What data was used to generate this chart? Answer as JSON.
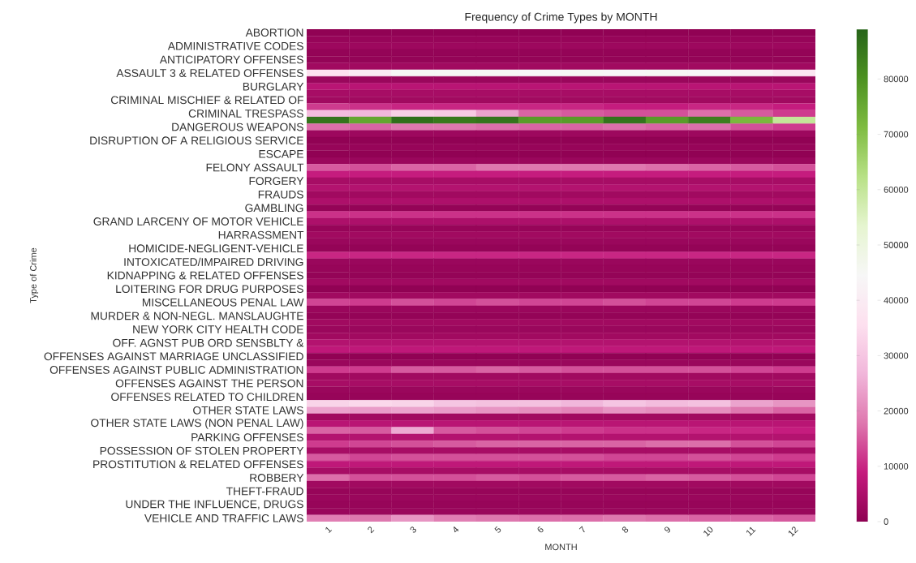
{
  "chart_data": {
    "type": "heatmap",
    "title": "Frequency of Crime Types by MONTH",
    "xlabel": "MONTH",
    "ylabel": "Type of Crime",
    "categories": [
      "1",
      "2",
      "3",
      "4",
      "5",
      "6",
      "7",
      "8",
      "9",
      "10",
      "11",
      "12"
    ],
    "y_categories": [
      "ABORTION",
      null,
      "ADMINISTRATIVE CODES",
      null,
      "ANTICIPATORY OFFENSES",
      null,
      "ASSAULT 3 & RELATED OFFENSES",
      null,
      "BURGLARY",
      null,
      "CRIMINAL MISCHIEF & RELATED OF",
      null,
      "CRIMINAL TRESPASS",
      null,
      "DANGEROUS WEAPONS",
      null,
      "DISRUPTION OF A RELIGIOUS SERVICE",
      null,
      "ESCAPE",
      null,
      "FELONY ASSAULT",
      null,
      "FORGERY",
      null,
      "FRAUDS",
      null,
      "GAMBLING",
      null,
      "GRAND LARCENY OF MOTOR VEHICLE",
      null,
      "HARRASSMENT",
      null,
      "HOMICIDE-NEGLIGENT-VEHICLE",
      null,
      "INTOXICATED/IMPAIRED DRIVING",
      null,
      "KIDNAPPING & RELATED OFFENSES",
      null,
      "LOITERING FOR DRUG PURPOSES",
      null,
      "MISCELLANEOUS PENAL LAW",
      null,
      "MURDER & NON-NEGL. MANSLAUGHTE",
      null,
      "NEW YORK CITY HEALTH CODE",
      null,
      "OFF. AGNST PUB ORD SENSBLTY &",
      null,
      "OFFENSES AGAINST MARRIAGE UNCLASSIFIED",
      null,
      "OFFENSES AGAINST PUBLIC ADMINISTRATION",
      null,
      "OFFENSES AGAINST THE PERSON",
      null,
      "OFFENSES RELATED TO CHILDREN",
      null,
      "OTHER STATE LAWS",
      null,
      "OTHER STATE LAWS (NON PENAL LAW)",
      null,
      "PARKING OFFENSES",
      null,
      "POSSESSION OF STOLEN PROPERTY",
      null,
      "PROSTITUTION & RELATED OFFENSES",
      null,
      "ROBBERY",
      null,
      "THEFT-FRAUD",
      null,
      "UNDER THE INFLUENCE, DRUGS",
      null,
      "VEHICLE AND TRAFFIC LAWS"
    ],
    "cells": [
      [
        500,
        500,
        500,
        500,
        500,
        500,
        500,
        500,
        500,
        500,
        500,
        500
      ],
      [
        1500,
        1500,
        1500,
        1500,
        1500,
        1500,
        1500,
        1500,
        1500,
        1500,
        1500,
        1500
      ],
      [
        2500,
        2500,
        2500,
        2500,
        2500,
        2500,
        2500,
        2500,
        2500,
        2500,
        2500,
        2500
      ],
      [
        1000,
        1000,
        1000,
        1000,
        1000,
        1000,
        1000,
        1000,
        1000,
        1000,
        1000,
        1000
      ],
      [
        1000,
        1000,
        1000,
        1000,
        1000,
        1000,
        1000,
        1000,
        1000,
        1000,
        1000,
        1000
      ],
      [
        3000,
        3000,
        3000,
        3000,
        3000,
        3000,
        3000,
        3000,
        3000,
        3000,
        3000,
        3000
      ],
      [
        36000,
        40000,
        45000,
        45000,
        45000,
        44000,
        45000,
        44000,
        45000,
        44000,
        42000,
        38000
      ],
      [
        2000,
        2000,
        2000,
        2000,
        2000,
        2000,
        2000,
        2000,
        2000,
        2000,
        2000,
        2000
      ],
      [
        7000,
        7000,
        7000,
        7000,
        7000,
        7000,
        7000,
        7000,
        7000,
        7000,
        7000,
        7000
      ],
      [
        4000,
        4000,
        4000,
        4000,
        4000,
        4000,
        4000,
        4000,
        4000,
        4000,
        4000,
        4000
      ],
      [
        3000,
        3000,
        3000,
        3000,
        3000,
        3000,
        3000,
        3000,
        3000,
        3000,
        3000,
        3000
      ],
      [
        12000,
        11000,
        10000,
        10000,
        10000,
        10000,
        10000,
        9000,
        9000,
        10000,
        10000,
        9000
      ],
      [
        28000,
        27000,
        32000,
        31000,
        24000,
        16000,
        15000,
        14000,
        14000,
        17000,
        15000,
        12000
      ],
      [
        86000,
        76000,
        87000,
        85000,
        86000,
        78000,
        78000,
        86000,
        78000,
        84000,
        72000,
        60000
      ],
      [
        17000,
        16000,
        18000,
        18000,
        17000,
        16000,
        16000,
        17000,
        16000,
        17000,
        14000,
        12000
      ],
      [
        2500,
        2500,
        2500,
        2500,
        2500,
        2500,
        2500,
        2500,
        2500,
        2500,
        2500,
        2500
      ],
      [
        500,
        500,
        500,
        500,
        500,
        500,
        500,
        500,
        500,
        500,
        500,
        500
      ],
      [
        1500,
        1500,
        1500,
        1500,
        1500,
        1500,
        1500,
        1500,
        1500,
        1500,
        1500,
        1500
      ],
      [
        500,
        500,
        500,
        500,
        500,
        500,
        500,
        500,
        500,
        500,
        500,
        500
      ],
      [
        2000,
        2000,
        2000,
        2000,
        2000,
        2000,
        2000,
        2000,
        2000,
        2000,
        2000,
        2000
      ],
      [
        15000,
        14000,
        16000,
        16000,
        18000,
        18000,
        18000,
        18000,
        17000,
        16000,
        15000,
        14000
      ],
      [
        9000,
        9000,
        9000,
        9000,
        9000,
        9000,
        9000,
        9000,
        9000,
        9000,
        9000,
        9000
      ],
      [
        4000,
        4000,
        4000,
        4000,
        4000,
        4000,
        4000,
        4000,
        4000,
        4000,
        4000,
        4000
      ],
      [
        6000,
        6000,
        6000,
        6000,
        6000,
        6000,
        6000,
        6000,
        6000,
        6000,
        6000,
        6000
      ],
      [
        3000,
        3000,
        3000,
        3000,
        3000,
        3000,
        3000,
        3000,
        3000,
        3000,
        3000,
        3000
      ],
      [
        5000,
        5000,
        5000,
        5000,
        5000,
        5000,
        5000,
        5000,
        5000,
        5000,
        5000,
        5000
      ],
      [
        1000,
        1000,
        1000,
        1000,
        1000,
        1000,
        1000,
        1000,
        1000,
        1000,
        1000,
        1000
      ],
      [
        11000,
        11000,
        11000,
        11000,
        11000,
        11000,
        11000,
        11000,
        11000,
        11000,
        11000,
        11000
      ],
      [
        5000,
        5000,
        5000,
        5000,
        5000,
        5000,
        5000,
        5000,
        5000,
        5000,
        5000,
        5000
      ],
      [
        1500,
        1500,
        1500,
        1500,
        1500,
        1500,
        1500,
        1500,
        1500,
        1500,
        1500,
        1500
      ],
      [
        3000,
        3000,
        3000,
        3000,
        3000,
        3000,
        3000,
        3000,
        3000,
        3000,
        3000,
        3000
      ],
      [
        2000,
        2000,
        2000,
        2000,
        2000,
        2000,
        2000,
        2000,
        2000,
        2000,
        2000,
        2000
      ],
      [
        1000,
        1000,
        1000,
        1000,
        1000,
        1000,
        1000,
        1000,
        1000,
        1000,
        1000,
        1000
      ],
      [
        10000,
        10000,
        10000,
        10000,
        10000,
        10000,
        10000,
        10000,
        10000,
        10000,
        10000,
        10000
      ],
      [
        2000,
        2000,
        2000,
        2000,
        2000,
        2000,
        2000,
        2000,
        2000,
        2000,
        2000,
        2000
      ],
      [
        1500,
        1500,
        1500,
        1500,
        1500,
        1500,
        1500,
        1500,
        1500,
        1500,
        1500,
        1500
      ],
      [
        1000,
        1000,
        1000,
        1000,
        1000,
        1000,
        1000,
        1000,
        1000,
        1000,
        1000,
        1000
      ],
      [
        3000,
        3000,
        3000,
        3000,
        3000,
        3000,
        3000,
        3000,
        3000,
        3000,
        3000,
        3000
      ],
      [
        500,
        500,
        500,
        500,
        500,
        500,
        500,
        500,
        500,
        500,
        500,
        500
      ],
      [
        3000,
        3000,
        3000,
        3000,
        3000,
        3000,
        3000,
        3000,
        3000,
        3000,
        3000,
        3000
      ],
      [
        13000,
        12000,
        14000,
        13000,
        14000,
        13000,
        13000,
        14000,
        13000,
        13000,
        12000,
        12000
      ],
      [
        2000,
        2000,
        2000,
        2000,
        2000,
        2000,
        2000,
        2000,
        2000,
        2000,
        2000,
        2000
      ],
      [
        1000,
        1000,
        1000,
        1000,
        1000,
        1000,
        1000,
        1000,
        1000,
        1000,
        1000,
        1000
      ],
      [
        3000,
        3000,
        3000,
        3000,
        3000,
        3000,
        3000,
        3000,
        3000,
        3000,
        3000,
        3000
      ],
      [
        2000,
        2000,
        2000,
        2000,
        2000,
        2000,
        2000,
        2000,
        2000,
        2000,
        2000,
        2000
      ],
      [
        3000,
        3000,
        3000,
        3000,
        3000,
        3000,
        3000,
        3000,
        3000,
        3000,
        3000,
        3000
      ],
      [
        6000,
        6000,
        6000,
        6000,
        6000,
        6000,
        6000,
        6000,
        6000,
        6000,
        6000,
        6000
      ],
      [
        8000,
        8000,
        8000,
        8000,
        8000,
        8000,
        8000,
        8000,
        8000,
        8000,
        8000,
        8000
      ],
      [
        500,
        500,
        500,
        500,
        500,
        500,
        500,
        500,
        500,
        500,
        500,
        500
      ],
      [
        2000,
        2000,
        2000,
        2000,
        2000,
        2000,
        2000,
        2000,
        2000,
        2000,
        2000,
        2000
      ],
      [
        12000,
        12000,
        15000,
        15000,
        16000,
        15000,
        14000,
        14000,
        14000,
        14000,
        13000,
        12000
      ],
      [
        3000,
        3000,
        3000,
        3000,
        3000,
        3000,
        3000,
        3000,
        3000,
        3000,
        3000,
        3000
      ],
      [
        4000,
        4000,
        4000,
        4000,
        4000,
        4000,
        4000,
        4000,
        4000,
        4000,
        4000,
        4000
      ],
      [
        2000,
        2000,
        2000,
        2000,
        2000,
        2000,
        2000,
        2000,
        2000,
        2000,
        2000,
        2000
      ],
      [
        1500,
        1500,
        1500,
        1500,
        1500,
        1500,
        1500,
        1500,
        1500,
        1500,
        1500,
        1500
      ],
      [
        33000,
        34000,
        33000,
        30000,
        29000,
        29000,
        27000,
        30000,
        28000,
        29000,
        24000,
        22000
      ],
      [
        24000,
        23000,
        24000,
        23000,
        22000,
        21000,
        20000,
        22000,
        21000,
        21000,
        18000,
        16000
      ],
      [
        3000,
        3000,
        3000,
        3000,
        3000,
        3000,
        3000,
        3000,
        3000,
        3000,
        3000,
        3000
      ],
      [
        7000,
        7000,
        7000,
        7000,
        7000,
        7000,
        7000,
        7000,
        7000,
        7000,
        7000,
        7000
      ],
      [
        16000,
        15000,
        25000,
        15000,
        14000,
        13000,
        12000,
        11000,
        11000,
        10000,
        10000,
        9000
      ],
      [
        6000,
        6000,
        6000,
        6000,
        6000,
        6000,
        6000,
        6000,
        6000,
        6000,
        6000,
        6000
      ],
      [
        12000,
        13000,
        14000,
        15000,
        16000,
        16000,
        16000,
        16000,
        17000,
        17000,
        14000,
        13000
      ],
      [
        4000,
        4000,
        4000,
        4000,
        4000,
        4000,
        4000,
        4000,
        4000,
        4000,
        4000,
        4000
      ],
      [
        15000,
        13000,
        14000,
        14000,
        14000,
        14000,
        14000,
        13000,
        13000,
        14000,
        13000,
        12000
      ],
      [
        8000,
        8000,
        8000,
        8000,
        8000,
        8000,
        8000,
        8000,
        8000,
        8000,
        8000,
        8000
      ],
      [
        4000,
        4000,
        4000,
        4000,
        4000,
        4000,
        4000,
        4000,
        4000,
        4000,
        4000,
        4000
      ],
      [
        17000,
        14000,
        14000,
        14000,
        15000,
        14000,
        15000,
        15000,
        16000,
        15000,
        14000,
        13000
      ],
      [
        3000,
        3000,
        3000,
        3000,
        3000,
        3000,
        3000,
        3000,
        3000,
        3000,
        3000,
        3000
      ],
      [
        1500,
        1500,
        1500,
        1500,
        1500,
        1500,
        1500,
        1500,
        1500,
        1500,
        1500,
        1500
      ],
      [
        2000,
        2000,
        2000,
        2000,
        2000,
        2000,
        2000,
        2000,
        2000,
        2000,
        2000,
        2000
      ],
      [
        1500,
        1500,
        1500,
        1500,
        1500,
        1500,
        1500,
        1500,
        1500,
        1500,
        1500,
        1500
      ],
      [
        2000,
        2000,
        2000,
        2000,
        2000,
        2000,
        2000,
        2000,
        2000,
        2000,
        2000,
        2000
      ],
      [
        19000,
        18000,
        22000,
        19000,
        18000,
        17000,
        17000,
        18000,
        17000,
        16000,
        16000,
        15000
      ]
    ],
    "clim": [
      0,
      89000
    ],
    "cticks": [
      0,
      10000,
      20000,
      30000,
      40000,
      50000,
      60000,
      70000,
      80000
    ]
  }
}
